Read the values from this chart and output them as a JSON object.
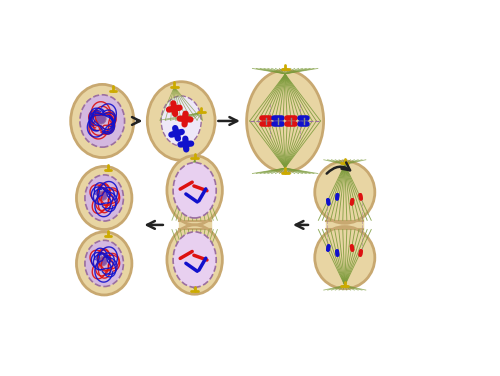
{
  "bg_color": "#ffffff",
  "cell_fill": "#E8D5A3",
  "cell_edge": "#C8A870",
  "nucleus_fill": "#D4B8E0",
  "nucleus_fill2": "#E8D0F0",
  "nucleus_edge": "#9B6FA0",
  "red_color": "#DD1111",
  "blue_color": "#1111CC",
  "spindle_color": "#7A9A3A",
  "centriole_color": "#CCAA00",
  "arrow_color": "#222222",
  "nucleolus_color": "#8855AA",
  "cell_gradient_edge": "#B8A060"
}
